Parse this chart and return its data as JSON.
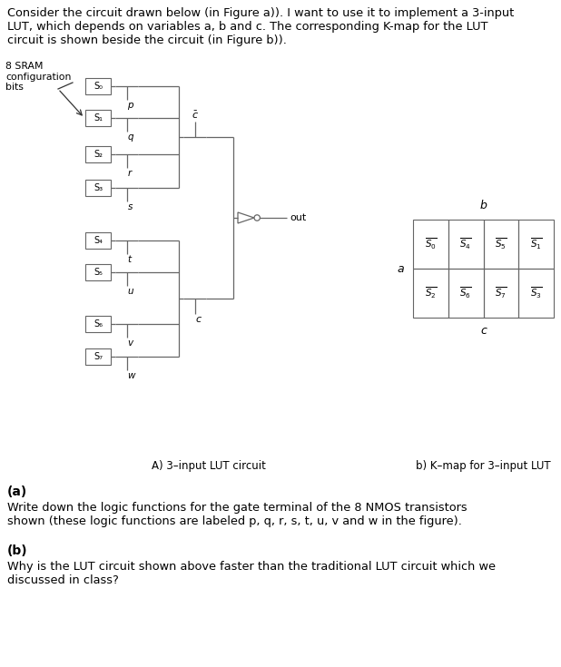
{
  "title_text": "Consider the circuit drawn below (in Figure a)). I want to use it to implement a 3-input\nLUT, which depends on variables a, b and c. The corresponding K-map for the LUT\ncircuit is shown beside the circuit (in Figure b)).",
  "caption_A": "A) 3–input LUT circuit",
  "caption_B": "b) K–map for 3–input LUT",
  "sram_labels": [
    "S₀",
    "S₁",
    "S₂",
    "S₃",
    "S₄",
    "S₅",
    "S₆",
    "S₇"
  ],
  "gate_labels": [
    "p",
    "q",
    "r",
    "s",
    "t",
    "u",
    "v",
    "w"
  ],
  "kmap_row0": [
    "$\\overline{S_0}$",
    "$\\overline{S_4}$",
    "$\\overline{S_5}$",
    "$\\overline{S_1}$"
  ],
  "kmap_row1": [
    "$\\overline{S_2}$",
    "$\\overline{S_6}$",
    "$\\overline{S_7}$",
    "$\\overline{S_3}$"
  ],
  "kmap_label_a": "a",
  "kmap_label_b": "b",
  "kmap_label_c": "c",
  "part_a_bold": "(a)",
  "part_a_text": "Write down the logic functions for the gate terminal of the 8 NMOS transistors\nshown (these logic functions are labeled p, q, r, s, t, u, v and w in the figure).",
  "part_b_bold": "(b)",
  "part_b_text": "Why is the LUT circuit shown above faster than the traditional LUT circuit which we\ndiscussed in class?",
  "label_8sram": "8 SRAM\nconfiguration\nbits",
  "label_out": "out",
  "bg_color": "#ffffff",
  "line_color": "#666666",
  "text_color": "#000000"
}
